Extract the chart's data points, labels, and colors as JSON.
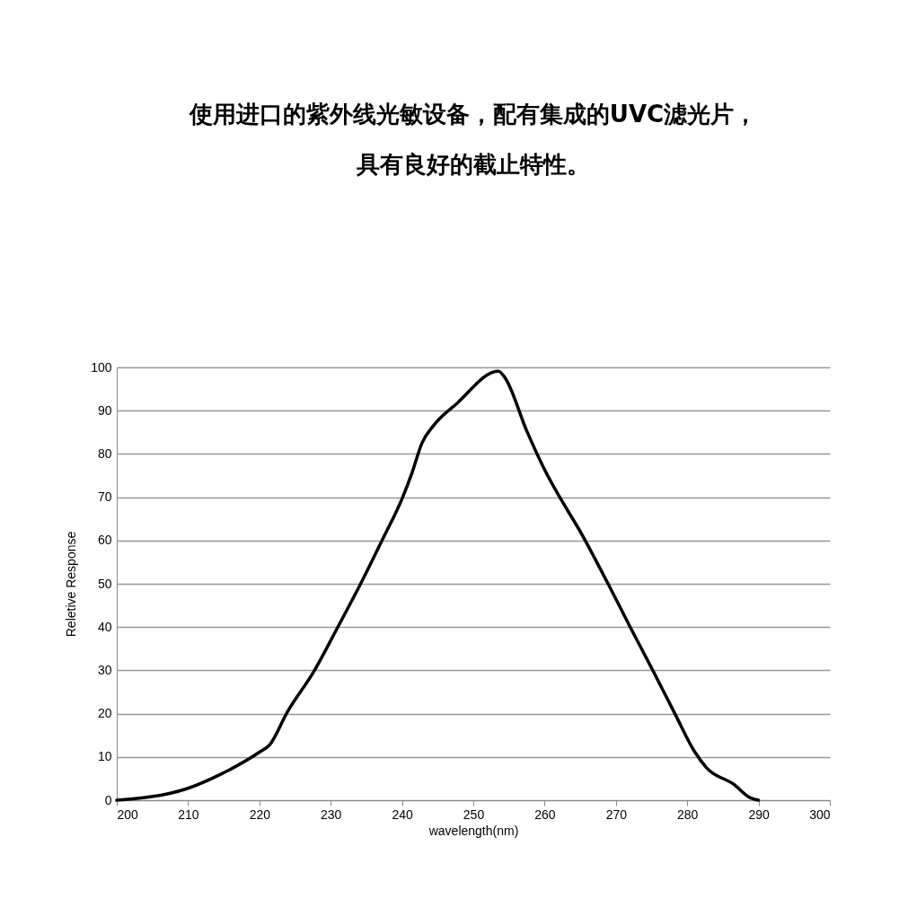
{
  "chart_data": {
    "type": "line",
    "title": "使用进口的紫外线光敏设备，配有集成的UVC滤光片，",
    "subtitle": "具有良好的截止特性。",
    "xlabel": "wavelength(nm)",
    "ylabel": "Reletive Response",
    "x": [
      200,
      209.7,
      214.7,
      220.2,
      221.4,
      223.9,
      227.7,
      231.1,
      234.2,
      237.2,
      240.1,
      241.4,
      242.8,
      244.5,
      247.6,
      253.5,
      254.4,
      257.5,
      259.8,
      265.7,
      268.9,
      272.0,
      275.2,
      278.3,
      281.0,
      282.7,
      286.5,
      288.8,
      290.0
    ],
    "series": [
      {
        "color": "#000000",
        "values": [
          0,
          2.6,
          6.1,
          11.3,
          12.7,
          20.3,
          29.9,
          40.3,
          50,
          60,
          70,
          75.6,
          82.5,
          86.7,
          91.5,
          99.1,
          97.7,
          85.3,
          77,
          60,
          50,
          40,
          29.9,
          19.9,
          11.3,
          7.5,
          3.7,
          0.6,
          0
        ]
      }
    ],
    "xlim": [
      200,
      300
    ],
    "xticks": [
      200,
      210,
      220,
      230,
      240,
      250,
      260,
      270,
      280,
      290,
      300
    ],
    "ylim": [
      0,
      100
    ],
    "yticks": [
      0,
      10,
      20,
      30,
      40,
      50,
      60,
      70,
      80,
      90,
      100
    ],
    "grid": "y",
    "marker": "none",
    "line_style": "solid"
  }
}
